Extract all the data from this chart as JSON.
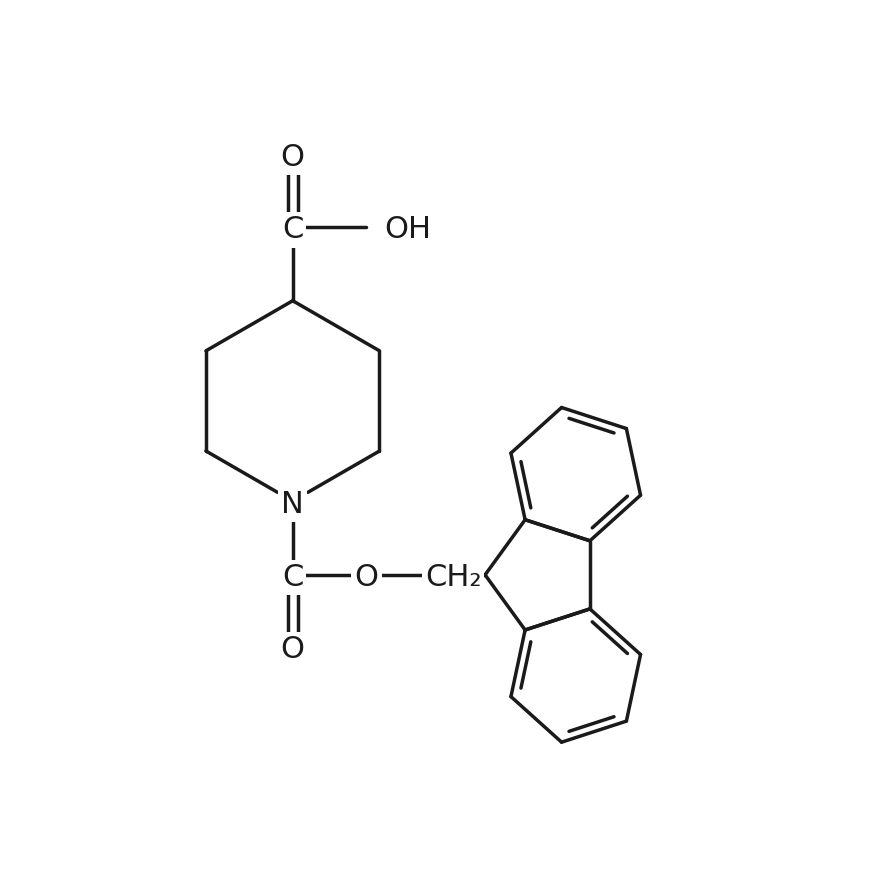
{
  "bg_color": "#ffffff",
  "line_color": "#1a1a1a",
  "lw": 2.5,
  "fs": 22,
  "figsize": [
    8.9,
    8.9
  ],
  "xlim": [
    -1,
    10
  ],
  "ylim": [
    -0.5,
    10.5
  ]
}
